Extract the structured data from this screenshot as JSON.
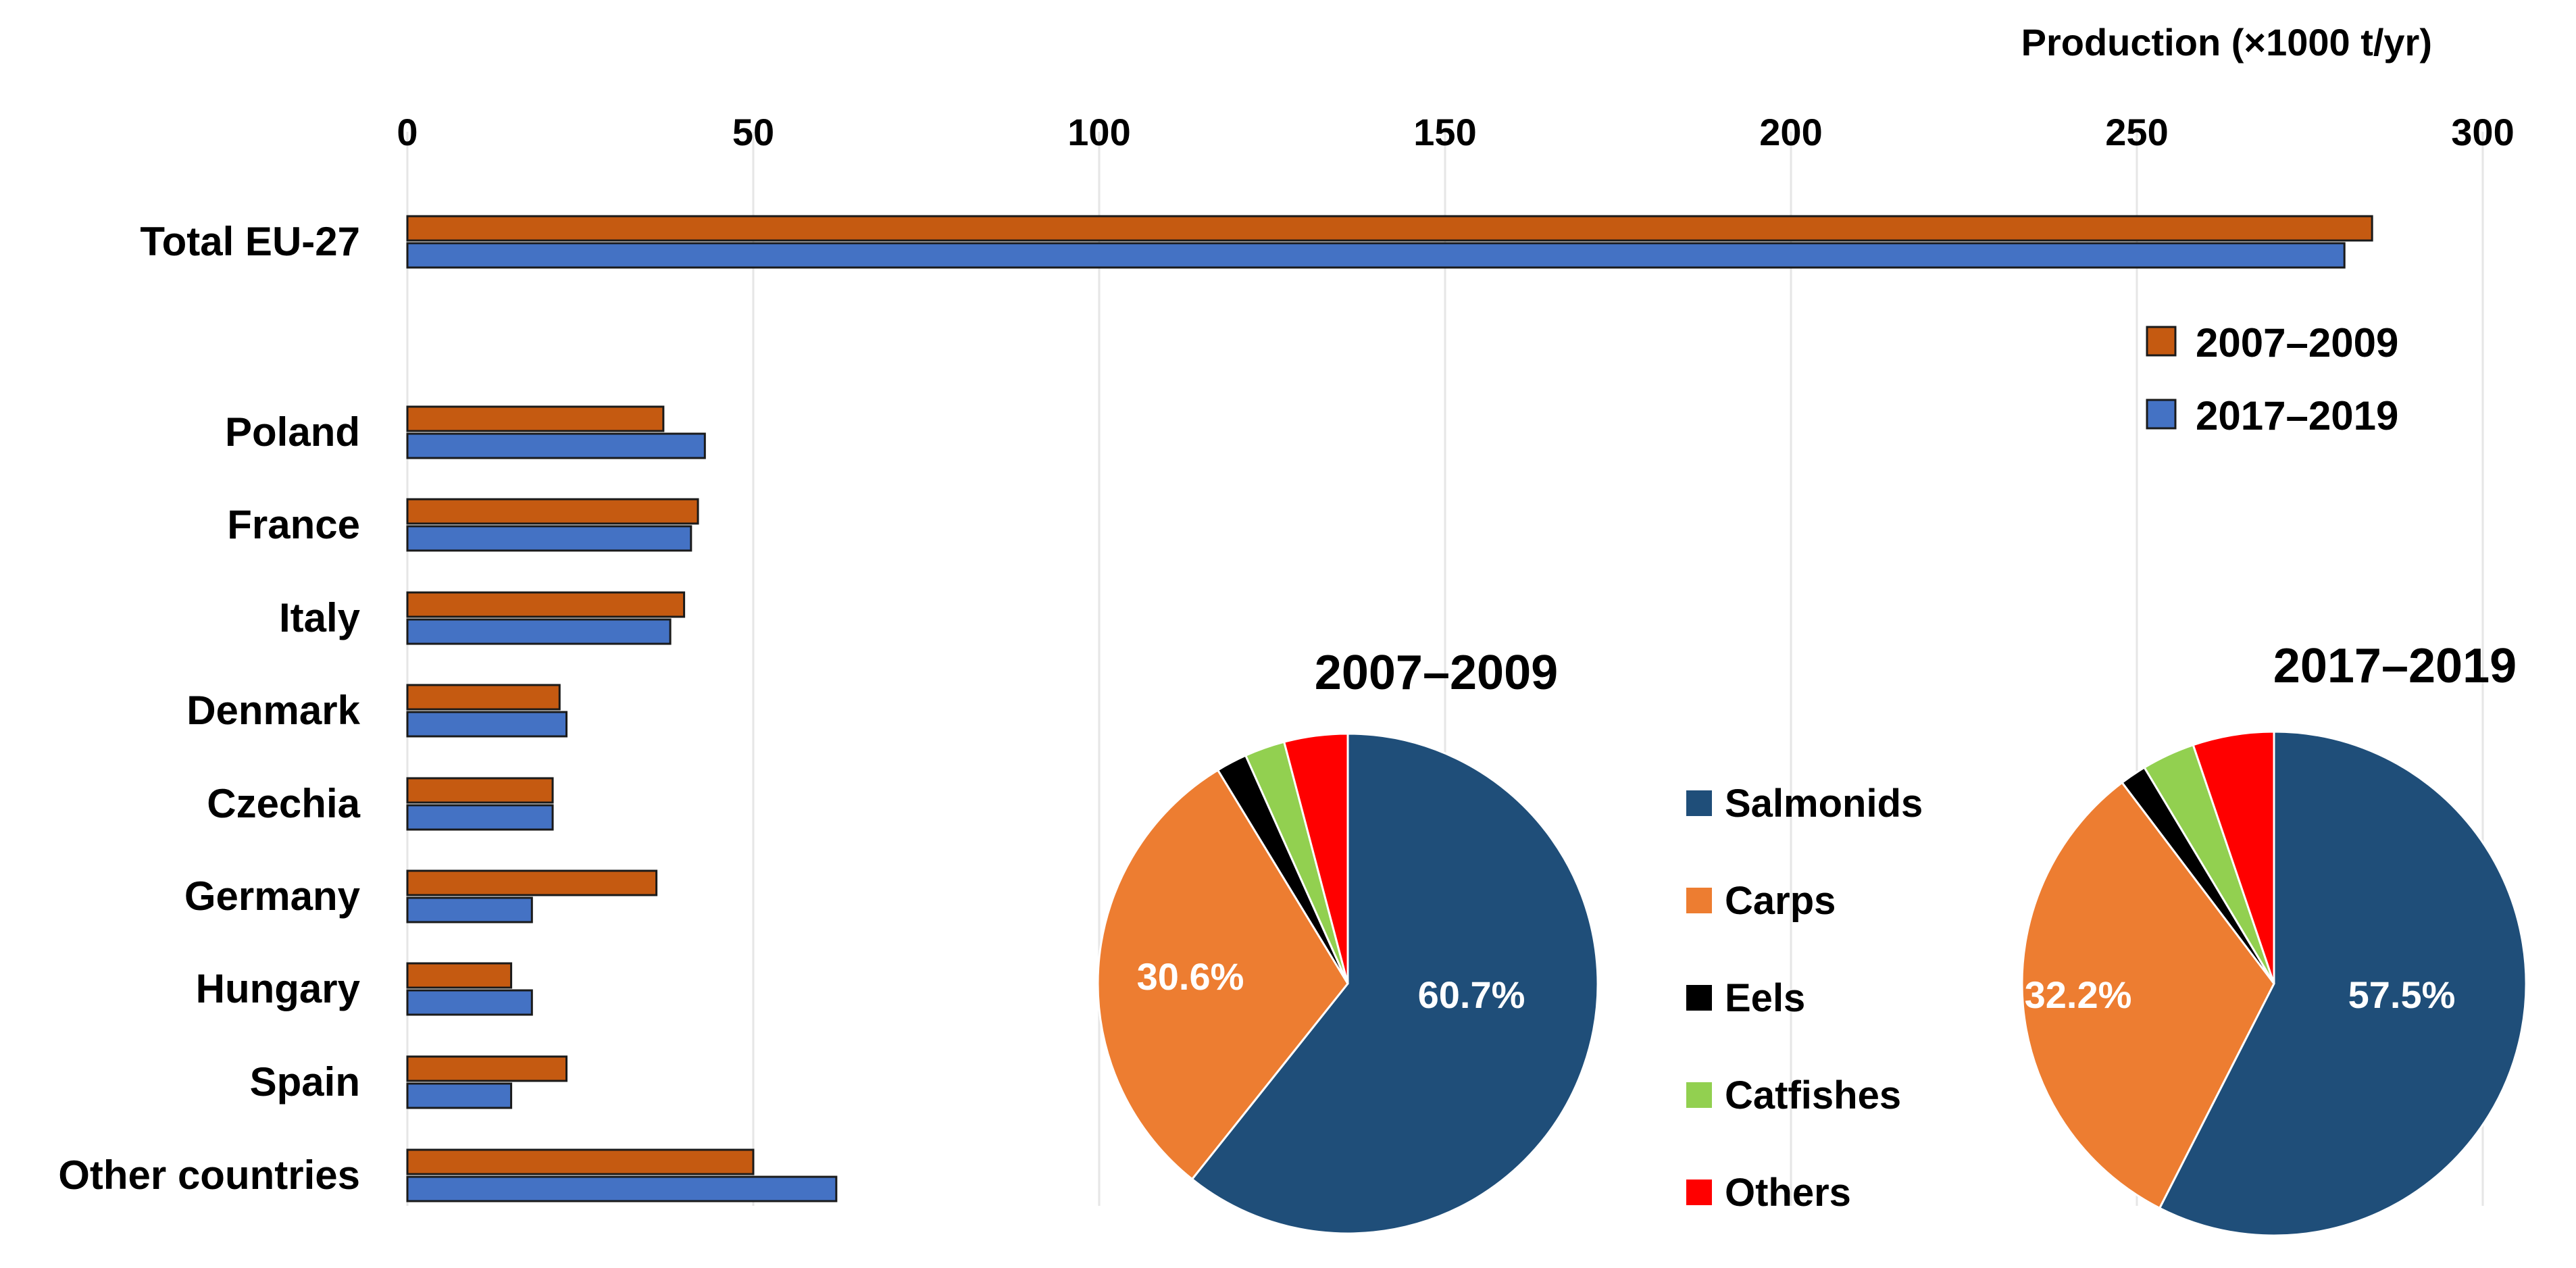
{
  "chart_data": [
    {
      "type": "bar",
      "orientation": "horizontal",
      "xlabel": "Production (×1000 t/yr)",
      "xlim": [
        0,
        300
      ],
      "ticks": [
        "0",
        "50",
        "100",
        "150",
        "200",
        "250",
        "300"
      ],
      "categories": [
        "Total EU-27",
        "Poland",
        "France",
        "Italy",
        "Denmark",
        "Czechia",
        "Germany",
        "Hungary",
        "Spain",
        "Other countries"
      ],
      "series": [
        {
          "name": "2007–2009",
          "color": "#c55a11",
          "values": [
            284,
            37,
            42,
            40,
            22,
            21,
            36,
            15,
            23,
            50
          ]
        },
        {
          "name": "2017–2019",
          "color": "#4472c4",
          "values": [
            280,
            43,
            41,
            38,
            23,
            21,
            18,
            18,
            15,
            62
          ]
        }
      ],
      "legend_position": "right"
    },
    {
      "type": "pie",
      "title": "2007–2009",
      "categories": [
        "Salmonids",
        "Carps",
        "Eels",
        "Catfishes",
        "Others"
      ],
      "values": [
        60.7,
        30.6,
        2.0,
        2.6,
        4.1
      ],
      "labels": [
        "60.7%",
        "30.6%",
        "",
        "",
        ""
      ],
      "colors": [
        "#1f4e79",
        "#ed7d31",
        "#000000",
        "#92d050",
        "#ff0000"
      ]
    },
    {
      "type": "pie",
      "title": "2017–2019",
      "categories": [
        "Salmonids",
        "Carps",
        "Eels",
        "Catfishes",
        "Others"
      ],
      "values": [
        57.5,
        32.2,
        1.7,
        3.4,
        5.2
      ],
      "labels": [
        "57.5%",
        "32.2%",
        "",
        "",
        ""
      ],
      "colors": [
        "#1f4e79",
        "#ed7d31",
        "#000000",
        "#92d050",
        "#ff0000"
      ]
    }
  ]
}
